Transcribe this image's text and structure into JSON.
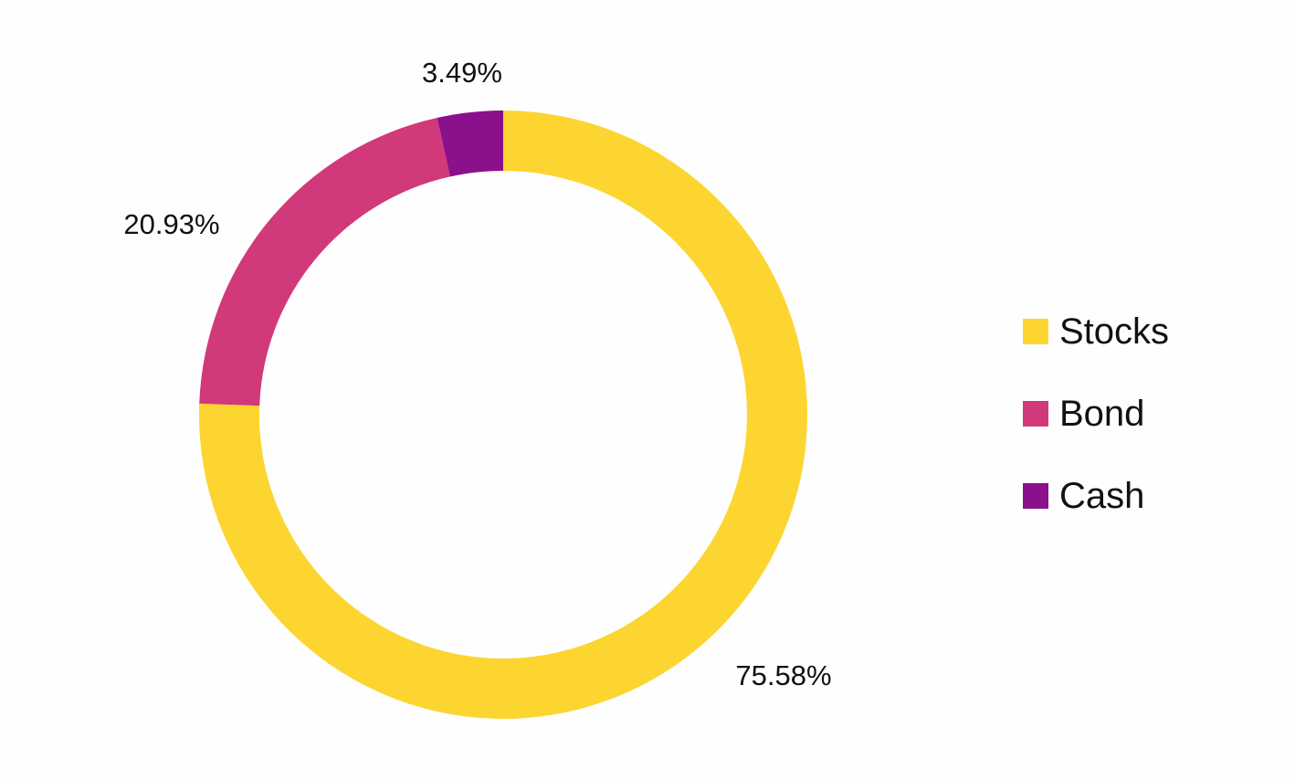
{
  "chart_data": {
    "type": "pie",
    "donut": true,
    "categories": [
      "Stocks",
      "Bond",
      "Cash"
    ],
    "values": [
      75.58,
      20.93,
      3.49
    ],
    "data_labels": [
      "75.58%",
      "20.93%",
      "3.49%"
    ],
    "colors": [
      "#fdd531",
      "#d1397a",
      "#8b108c"
    ],
    "start_angle_deg": 0,
    "direction": "clockwise",
    "legend_position": "right"
  },
  "legend": {
    "items": [
      {
        "label": "Stocks",
        "color": "#fdd531"
      },
      {
        "label": "Bond",
        "color": "#d1397a"
      },
      {
        "label": "Cash",
        "color": "#8b108c"
      }
    ]
  }
}
